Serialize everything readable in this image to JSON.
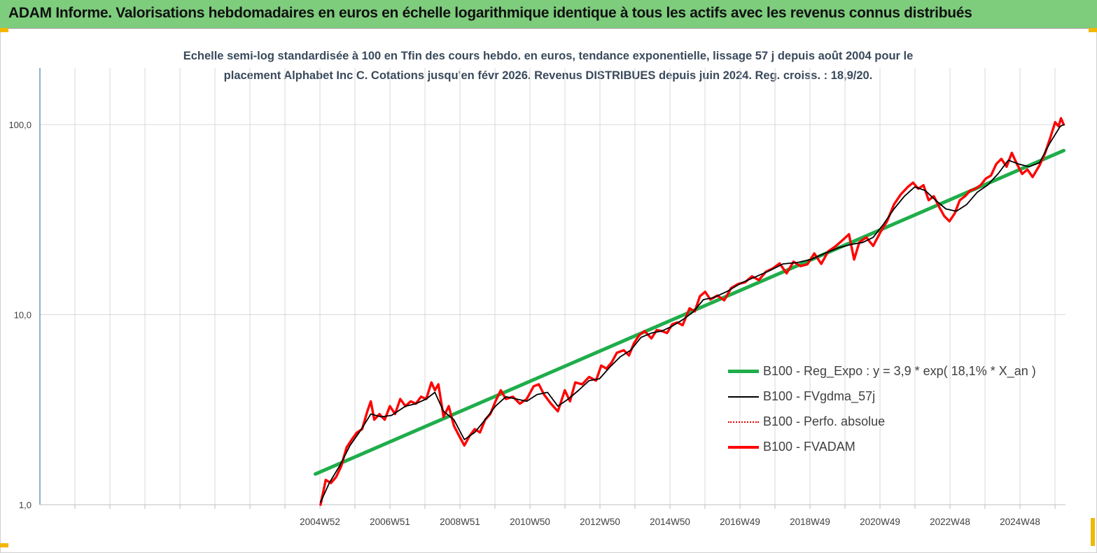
{
  "header": {
    "title": "ADAM Informe. Valorisations hebdomadaires en euros en échelle logarithmique identique à tous les actifs avec les revenus connus distribués"
  },
  "colors": {
    "header_bg": "#7dcd7d",
    "corner_accent": "#f2b705",
    "subtitle_text": "#3a4a5c",
    "axis_text": "#404040",
    "grid": "#d9d9d9",
    "y_axis": "#4a7ab5"
  },
  "chart_data": {
    "type": "line",
    "subtitle_line1": "Echelle semi-log standardisée à 100 en Tfin des cours hebdo. en euros, tendance exponentielle, lissage 57 j depuis août 2004 pour le",
    "subtitle_line2": "placement Alphabet Inc C. Cotations jusqu'en févr 2026. Revenus DISTRIBUES depuis juin 2024. Reg. croiss. : 18,9/20.",
    "y_scale": "log",
    "ylim": [
      1,
      180
    ],
    "y_ticks": [
      "1,0",
      "10,0",
      "100,0"
    ],
    "y_tick_values": [
      1,
      10,
      100
    ],
    "x_tick_labels": [
      "2004W52",
      "2006W51",
      "2008W51",
      "2010W50",
      "2012W50",
      "2014W50",
      "2016W49",
      "2018W49",
      "2020W49",
      "2022W48",
      "2024W48"
    ],
    "x_range_years": [
      1996.65,
      2026.25
    ],
    "grid": true,
    "legend_position": "lower-right",
    "series": [
      {
        "name": "B100 - Reg_Expo : y = 3,9 * exp( 18,1% *  X_an )",
        "style": "thick-green",
        "color": "#1fad4b",
        "points": [
          [
            2004.6,
            1.45
          ],
          [
            2026.2,
            73
          ]
        ]
      },
      {
        "name": "B100 - FVgdma_57j",
        "style": "thin-black",
        "color": "#000000",
        "points": [
          [
            2004.75,
            1.03
          ],
          [
            2005.0,
            1.3
          ],
          [
            2005.3,
            1.6
          ],
          [
            2005.6,
            2.05
          ],
          [
            2005.9,
            2.45
          ],
          [
            2006.2,
            3.0
          ],
          [
            2006.5,
            2.9
          ],
          [
            2006.8,
            2.95
          ],
          [
            2007.2,
            3.3
          ],
          [
            2007.5,
            3.4
          ],
          [
            2007.8,
            3.6
          ],
          [
            2008.05,
            3.9
          ],
          [
            2008.3,
            3.1
          ],
          [
            2008.6,
            2.8
          ],
          [
            2008.9,
            2.2
          ],
          [
            2009.2,
            2.4
          ],
          [
            2009.5,
            2.8
          ],
          [
            2009.8,
            3.3
          ],
          [
            2010.1,
            3.7
          ],
          [
            2010.4,
            3.6
          ],
          [
            2010.7,
            3.5
          ],
          [
            2011.0,
            3.8
          ],
          [
            2011.3,
            3.9
          ],
          [
            2011.6,
            3.3
          ],
          [
            2011.9,
            3.6
          ],
          [
            2012.2,
            4.0
          ],
          [
            2012.5,
            4.5
          ],
          [
            2012.8,
            4.6
          ],
          [
            2013.1,
            5.3
          ],
          [
            2013.4,
            6.0
          ],
          [
            2013.7,
            6.5
          ],
          [
            2014.0,
            7.6
          ],
          [
            2014.3,
            8.0
          ],
          [
            2014.6,
            8.2
          ],
          [
            2014.9,
            8.7
          ],
          [
            2015.2,
            9.4
          ],
          [
            2015.5,
            10.3
          ],
          [
            2015.8,
            12.0
          ],
          [
            2016.1,
            12.3
          ],
          [
            2016.5,
            13.3
          ],
          [
            2016.9,
            14.7
          ],
          [
            2017.3,
            15.8
          ],
          [
            2017.7,
            17.0
          ],
          [
            2018.1,
            18.5
          ],
          [
            2018.5,
            18.8
          ],
          [
            2018.9,
            19.5
          ],
          [
            2019.3,
            21.0
          ],
          [
            2019.7,
            22.5
          ],
          [
            2020.1,
            23.5
          ],
          [
            2020.4,
            24.0
          ],
          [
            2020.7,
            25.5
          ],
          [
            2021.0,
            30.0
          ],
          [
            2021.3,
            36.0
          ],
          [
            2021.6,
            42.0
          ],
          [
            2021.9,
            47.0
          ],
          [
            2022.2,
            45.0
          ],
          [
            2022.5,
            40.0
          ],
          [
            2022.8,
            36.0
          ],
          [
            2023.1,
            35.0
          ],
          [
            2023.4,
            38.0
          ],
          [
            2023.7,
            44.0
          ],
          [
            2024.0,
            48.0
          ],
          [
            2024.3,
            55.0
          ],
          [
            2024.6,
            65.0
          ],
          [
            2024.9,
            62.0
          ],
          [
            2025.2,
            60.0
          ],
          [
            2025.5,
            63.0
          ],
          [
            2025.8,
            80.0
          ],
          [
            2026.1,
            98.0
          ],
          [
            2026.2,
            100.0
          ]
        ]
      },
      {
        "name": "B100 - Perfo. absolue",
        "style": "dotted-red",
        "color": "#e60000",
        "points": []
      },
      {
        "name": "B100 - FVADAM",
        "style": "thick-red",
        "color": "#ff0000",
        "points": [
          [
            2004.75,
            1.0
          ],
          [
            2004.9,
            1.35
          ],
          [
            2005.05,
            1.3
          ],
          [
            2005.2,
            1.4
          ],
          [
            2005.35,
            1.6
          ],
          [
            2005.5,
            2.0
          ],
          [
            2005.65,
            2.2
          ],
          [
            2005.8,
            2.4
          ],
          [
            2005.95,
            2.5
          ],
          [
            2006.1,
            3.1
          ],
          [
            2006.2,
            3.5
          ],
          [
            2006.3,
            2.8
          ],
          [
            2006.45,
            3.0
          ],
          [
            2006.6,
            2.8
          ],
          [
            2006.75,
            3.3
          ],
          [
            2006.9,
            3.0
          ],
          [
            2007.05,
            3.6
          ],
          [
            2007.2,
            3.3
          ],
          [
            2007.35,
            3.5
          ],
          [
            2007.5,
            3.4
          ],
          [
            2007.65,
            3.7
          ],
          [
            2007.8,
            3.6
          ],
          [
            2007.95,
            4.4
          ],
          [
            2008.05,
            4.0
          ],
          [
            2008.15,
            4.3
          ],
          [
            2008.3,
            2.9
          ],
          [
            2008.45,
            3.3
          ],
          [
            2008.6,
            2.6
          ],
          [
            2008.75,
            2.3
          ],
          [
            2008.9,
            2.05
          ],
          [
            2009.05,
            2.3
          ],
          [
            2009.2,
            2.5
          ],
          [
            2009.35,
            2.4
          ],
          [
            2009.5,
            2.8
          ],
          [
            2009.65,
            3.0
          ],
          [
            2009.8,
            3.5
          ],
          [
            2009.95,
            4.0
          ],
          [
            2010.1,
            3.6
          ],
          [
            2010.3,
            3.7
          ],
          [
            2010.5,
            3.4
          ],
          [
            2010.7,
            3.6
          ],
          [
            2010.9,
            4.2
          ],
          [
            2011.05,
            4.3
          ],
          [
            2011.2,
            3.8
          ],
          [
            2011.4,
            3.4
          ],
          [
            2011.6,
            3.1
          ],
          [
            2011.8,
            4.0
          ],
          [
            2011.95,
            3.5
          ],
          [
            2012.1,
            4.4
          ],
          [
            2012.3,
            4.3
          ],
          [
            2012.5,
            4.7
          ],
          [
            2012.7,
            4.5
          ],
          [
            2012.85,
            5.4
          ],
          [
            2013.0,
            5.2
          ],
          [
            2013.15,
            5.6
          ],
          [
            2013.3,
            6.3
          ],
          [
            2013.5,
            6.5
          ],
          [
            2013.65,
            6.1
          ],
          [
            2013.8,
            7.1
          ],
          [
            2013.95,
            7.8
          ],
          [
            2014.1,
            8.2
          ],
          [
            2014.3,
            7.5
          ],
          [
            2014.45,
            8.3
          ],
          [
            2014.6,
            8.2
          ],
          [
            2014.75,
            8.0
          ],
          [
            2014.9,
            8.9
          ],
          [
            2015.05,
            9.1
          ],
          [
            2015.2,
            8.8
          ],
          [
            2015.4,
            10.8
          ],
          [
            2015.55,
            10.4
          ],
          [
            2015.7,
            12.5
          ],
          [
            2015.85,
            13.2
          ],
          [
            2016.0,
            12.0
          ],
          [
            2016.2,
            12.6
          ],
          [
            2016.4,
            11.9
          ],
          [
            2016.6,
            13.8
          ],
          [
            2016.8,
            14.5
          ],
          [
            2017.0,
            14.8
          ],
          [
            2017.2,
            15.9
          ],
          [
            2017.4,
            15.2
          ],
          [
            2017.6,
            16.8
          ],
          [
            2017.8,
            17.5
          ],
          [
            2018.0,
            18.6
          ],
          [
            2018.2,
            16.5
          ],
          [
            2018.4,
            19.0
          ],
          [
            2018.6,
            18.0
          ],
          [
            2018.8,
            18.4
          ],
          [
            2019.0,
            21.0
          ],
          [
            2019.2,
            18.5
          ],
          [
            2019.4,
            21.5
          ],
          [
            2019.6,
            22.8
          ],
          [
            2019.8,
            24.5
          ],
          [
            2020.0,
            26.5
          ],
          [
            2020.15,
            19.5
          ],
          [
            2020.3,
            24.0
          ],
          [
            2020.5,
            25.5
          ],
          [
            2020.7,
            23.0
          ],
          [
            2020.9,
            27.0
          ],
          [
            2021.1,
            31.0
          ],
          [
            2021.3,
            38.0
          ],
          [
            2021.5,
            43.0
          ],
          [
            2021.7,
            47.0
          ],
          [
            2021.85,
            49.5
          ],
          [
            2022.0,
            46.0
          ],
          [
            2022.15,
            48.0
          ],
          [
            2022.3,
            40.0
          ],
          [
            2022.45,
            42.0
          ],
          [
            2022.6,
            37.0
          ],
          [
            2022.75,
            33.0
          ],
          [
            2022.9,
            31.0
          ],
          [
            2023.05,
            34.0
          ],
          [
            2023.2,
            40.0
          ],
          [
            2023.35,
            42.0
          ],
          [
            2023.5,
            45.0
          ],
          [
            2023.65,
            46.0
          ],
          [
            2023.8,
            48.0
          ],
          [
            2023.95,
            52.0
          ],
          [
            2024.1,
            54.0
          ],
          [
            2024.25,
            62.0
          ],
          [
            2024.4,
            66.0
          ],
          [
            2024.55,
            60.0
          ],
          [
            2024.7,
            71.0
          ],
          [
            2024.85,
            62.0
          ],
          [
            2025.0,
            55.0
          ],
          [
            2025.15,
            58.0
          ],
          [
            2025.3,
            53.0
          ],
          [
            2025.5,
            61.0
          ],
          [
            2025.65,
            70.0
          ],
          [
            2025.8,
            84.0
          ],
          [
            2025.95,
            103.0
          ],
          [
            2026.05,
            98.0
          ],
          [
            2026.12,
            108.0
          ],
          [
            2026.2,
            100.0
          ]
        ]
      }
    ]
  }
}
